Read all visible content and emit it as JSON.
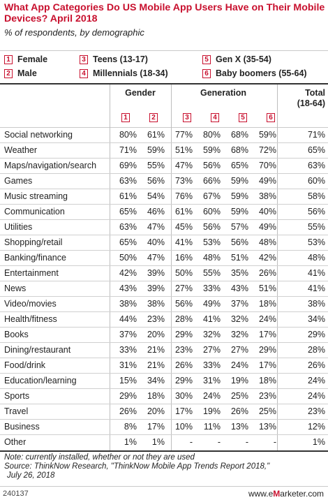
{
  "title": "What App Categories Do US Mobile App Users Have on Their Mobile Devices? April 2018",
  "subtitle": "% of respondents, by demographic",
  "legend": [
    {
      "num": "1",
      "label": "Female"
    },
    {
      "num": "2",
      "label": "Male"
    },
    {
      "num": "3",
      "label": "Teens (13-17)"
    },
    {
      "num": "4",
      "label": "Millennials (18-34)"
    },
    {
      "num": "5",
      "label": "Gen X (35-54)"
    },
    {
      "num": "6",
      "label": "Baby boomers (55-64)"
    }
  ],
  "headers": {
    "gender": "Gender",
    "generation": "Generation",
    "total": "Total",
    "total_sub": "(18-64)",
    "col_nums": [
      "1",
      "2",
      "3",
      "4",
      "5",
      "6"
    ]
  },
  "chart_data": {
    "type": "table",
    "columns": [
      "Female",
      "Male",
      "Teens (13-17)",
      "Millennials (18-34)",
      "Gen X (35-54)",
      "Baby boomers (55-64)",
      "Total (18-64)"
    ],
    "rows": [
      {
        "category": "Social networking",
        "values": [
          "80%",
          "61%",
          "77%",
          "80%",
          "68%",
          "59%",
          "71%"
        ]
      },
      {
        "category": "Weather",
        "values": [
          "71%",
          "59%",
          "51%",
          "59%",
          "68%",
          "72%",
          "65%"
        ]
      },
      {
        "category": "Maps/navigation/search",
        "values": [
          "69%",
          "55%",
          "47%",
          "56%",
          "65%",
          "70%",
          "63%"
        ]
      },
      {
        "category": "Games",
        "values": [
          "63%",
          "56%",
          "73%",
          "66%",
          "59%",
          "49%",
          "60%"
        ]
      },
      {
        "category": "Music streaming",
        "values": [
          "61%",
          "54%",
          "76%",
          "67%",
          "59%",
          "38%",
          "58%"
        ]
      },
      {
        "category": "Communication",
        "values": [
          "65%",
          "46%",
          "61%",
          "60%",
          "59%",
          "40%",
          "56%"
        ]
      },
      {
        "category": "Utilities",
        "values": [
          "63%",
          "47%",
          "45%",
          "56%",
          "57%",
          "49%",
          "55%"
        ]
      },
      {
        "category": "Shopping/retail",
        "values": [
          "65%",
          "40%",
          "41%",
          "53%",
          "56%",
          "48%",
          "53%"
        ]
      },
      {
        "category": "Banking/finance",
        "values": [
          "50%",
          "47%",
          "16%",
          "48%",
          "51%",
          "42%",
          "48%"
        ]
      },
      {
        "category": "Entertainment",
        "values": [
          "42%",
          "39%",
          "50%",
          "55%",
          "35%",
          "26%",
          "41%"
        ]
      },
      {
        "category": "News",
        "values": [
          "43%",
          "39%",
          "27%",
          "33%",
          "43%",
          "51%",
          "41%"
        ]
      },
      {
        "category": "Video/movies",
        "values": [
          "38%",
          "38%",
          "56%",
          "49%",
          "37%",
          "18%",
          "38%"
        ]
      },
      {
        "category": "Health/fitness",
        "values": [
          "44%",
          "23%",
          "28%",
          "41%",
          "32%",
          "24%",
          "34%"
        ]
      },
      {
        "category": "Books",
        "values": [
          "37%",
          "20%",
          "29%",
          "32%",
          "32%",
          "17%",
          "29%"
        ]
      },
      {
        "category": "Dining/restaurant",
        "values": [
          "33%",
          "21%",
          "23%",
          "27%",
          "27%",
          "29%",
          "28%"
        ]
      },
      {
        "category": "Food/drink",
        "values": [
          "31%",
          "21%",
          "26%",
          "33%",
          "24%",
          "17%",
          "26%"
        ]
      },
      {
        "category": "Education/learning",
        "values": [
          "15%",
          "34%",
          "29%",
          "31%",
          "19%",
          "18%",
          "24%"
        ]
      },
      {
        "category": "Sports",
        "values": [
          "29%",
          "18%",
          "30%",
          "24%",
          "25%",
          "23%",
          "24%"
        ]
      },
      {
        "category": "Travel",
        "values": [
          "26%",
          "20%",
          "17%",
          "19%",
          "26%",
          "25%",
          "23%"
        ]
      },
      {
        "category": "Business",
        "values": [
          "8%",
          "17%",
          "10%",
          "11%",
          "13%",
          "13%",
          "12%"
        ]
      },
      {
        "category": "Other",
        "values": [
          "1%",
          "1%",
          "-",
          "-",
          "-",
          "-",
          "1%"
        ]
      }
    ]
  },
  "note_line1": "Note: currently installed, whether or not they are used",
  "note_line2": "Source: ThinkNow Research, \"ThinkNow Mobile App Trends Report 2018,\"",
  "note_line3": "July 26, 2018",
  "footer_id": "240137",
  "brand": "www.eMarketer.com"
}
